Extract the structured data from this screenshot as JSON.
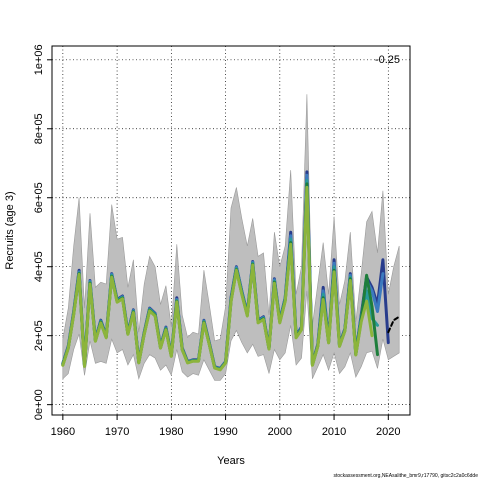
{
  "chart_data": {
    "type": "line",
    "title": "",
    "xlabel": "Years",
    "ylabel": "Recruits (age 3)",
    "xlim": [
      1958,
      2024
    ],
    "ylim": [
      -30000,
      1040000
    ],
    "x_ticks": [
      1960,
      1970,
      1980,
      1990,
      2000,
      2010,
      2020
    ],
    "y_ticks": [
      {
        "value": 0,
        "label": "0e+00"
      },
      {
        "value": 200000,
        "label": "2e+05"
      },
      {
        "value": 400000,
        "label": "4e+05"
      },
      {
        "value": 600000,
        "label": "6e+05"
      },
      {
        "value": 800000,
        "label": "8e+05"
      },
      {
        "value": 1000000,
        "label": "1e+06"
      }
    ],
    "grid": true,
    "corner_label": "-0.25",
    "footer": "stockassessment.org,NEAsalithe_bmr9,r17790, gitsc2c2a0c6dde",
    "band": {
      "x": [
        1960,
        1961,
        1962,
        1963,
        1964,
        1965,
        1966,
        1967,
        1968,
        1969,
        1970,
        1971,
        1972,
        1973,
        1974,
        1975,
        1976,
        1977,
        1978,
        1979,
        1980,
        1981,
        1982,
        1983,
        1984,
        1985,
        1986,
        1987,
        1988,
        1989,
        1990,
        1991,
        1992,
        1993,
        1994,
        1995,
        1996,
        1997,
        1998,
        1999,
        2000,
        2001,
        2002,
        2003,
        2004,
        2005,
        2006,
        2007,
        2008,
        2009,
        2010,
        2011,
        2012,
        2013,
        2014,
        2015,
        2016,
        2017,
        2018,
        2019,
        2020,
        2021,
        2022
      ],
      "upper": [
        190000,
        280000,
        460000,
        600000,
        280000,
        555000,
        340000,
        355000,
        350000,
        580000,
        480000,
        485000,
        340000,
        420000,
        210000,
        350000,
        430000,
        400000,
        290000,
        345000,
        225000,
        465000,
        260000,
        195000,
        210000,
        205000,
        390000,
        290000,
        185000,
        190000,
        285000,
        570000,
        630000,
        540000,
        460000,
        540000,
        430000,
        440000,
        260000,
        500000,
        400000,
        460000,
        680000,
        320000,
        400000,
        900000,
        230000,
        350000,
        470000,
        320000,
        545000,
        290000,
        360000,
        500000,
        240000,
        380000,
        530000,
        560000,
        440000,
        620000,
        320000,
        400000,
        460000
      ],
      "lower": [
        75000,
        90000,
        160000,
        205000,
        85000,
        185000,
        120000,
        125000,
        120000,
        190000,
        150000,
        160000,
        115000,
        145000,
        75000,
        120000,
        145000,
        135000,
        100000,
        115000,
        85000,
        160000,
        95000,
        80000,
        90000,
        85000,
        130000,
        100000,
        70000,
        70000,
        90000,
        185000,
        215000,
        180000,
        150000,
        175000,
        140000,
        145000,
        90000,
        160000,
        130000,
        150000,
        230000,
        115000,
        135000,
        330000,
        75000,
        110000,
        145000,
        100000,
        150000,
        90000,
        110000,
        150000,
        80000,
        110000,
        150000,
        155000,
        105000,
        190000,
        130000,
        140000,
        150000
      ]
    },
    "series": [
      {
        "color": "#283c8c",
        "x": [
          1960,
          1961,
          1962,
          1963,
          1964,
          1965,
          1966,
          1967,
          1968,
          1969,
          1970,
          1971,
          1972,
          1973,
          1974,
          1975,
          1976,
          1977,
          1978,
          1979,
          1980,
          1981,
          1982,
          1983,
          1984,
          1985,
          1986,
          1987,
          1988,
          1989,
          1990,
          1991,
          1992,
          1993,
          1994,
          1995,
          1996,
          1997,
          1998,
          1999,
          2000,
          2001,
          2002,
          2003,
          2004,
          2005,
          2006,
          2007,
          2008,
          2009,
          2010,
          2011,
          2012,
          2013,
          2014,
          2015,
          2016,
          2017,
          2018,
          2019,
          2020
        ],
        "y": [
          120000,
          170000,
          270000,
          390000,
          115000,
          360000,
          190000,
          245000,
          200000,
          380000,
          305000,
          315000,
          210000,
          275000,
          125000,
          210000,
          280000,
          265000,
          170000,
          225000,
          145000,
          310000,
          165000,
          125000,
          130000,
          130000,
          245000,
          180000,
          110000,
          105000,
          125000,
          310000,
          400000,
          330000,
          265000,
          415000,
          245000,
          255000,
          165000,
          365000,
          245000,
          310000,
          500000,
          200000,
          225000,
          675000,
          120000,
          175000,
          340000,
          185000,
          420000,
          175000,
          220000,
          380000,
          150000,
          260000,
          370000,
          340000,
          290000,
          420000,
          180000
        ]
      },
      {
        "color": "#3c7abf",
        "x": [
          1960,
          1961,
          1962,
          1963,
          1964,
          1965,
          1966,
          1967,
          1968,
          1969,
          1970,
          1971,
          1972,
          1973,
          1974,
          1975,
          1976,
          1977,
          1978,
          1979,
          1980,
          1981,
          1982,
          1983,
          1984,
          1985,
          1986,
          1987,
          1988,
          1989,
          1990,
          1991,
          1992,
          1993,
          1994,
          1995,
          1996,
          1997,
          1998,
          1999,
          2000,
          2001,
          2002,
          2003,
          2004,
          2005,
          2006,
          2007,
          2008,
          2009,
          2010,
          2011,
          2012,
          2013,
          2014,
          2015,
          2016,
          2017,
          2018,
          2019
        ],
        "y": [
          118000,
          168000,
          268000,
          385000,
          114000,
          358000,
          188000,
          243000,
          198000,
          378000,
          303000,
          313000,
          208000,
          273000,
          124000,
          208000,
          278000,
          263000,
          168000,
          223000,
          143000,
          305000,
          163000,
          124000,
          129000,
          129000,
          243000,
          178000,
          109000,
          104000,
          124000,
          305000,
          398000,
          328000,
          263000,
          413000,
          243000,
          253000,
          164000,
          362000,
          243000,
          308000,
          490000,
          198000,
          223000,
          665000,
          118000,
          173000,
          330000,
          183000,
          410000,
          173000,
          218000,
          375000,
          148000,
          255000,
          360000,
          330000,
          270000,
          380000
        ]
      },
      {
        "color": "#2a9a9a",
        "x": [
          1960,
          1961,
          1962,
          1963,
          1964,
          1965,
          1966,
          1967,
          1968,
          1969,
          1970,
          1971,
          1972,
          1973,
          1974,
          1975,
          1976,
          1977,
          1978,
          1979,
          1980,
          1981,
          1982,
          1983,
          1984,
          1985,
          1986,
          1987,
          1988,
          1989,
          1990,
          1991,
          1992,
          1993,
          1994,
          1995,
          1996,
          1997,
          1998,
          1999,
          2000,
          2001,
          2002,
          2003,
          2004,
          2005,
          2006,
          2007,
          2008,
          2009,
          2010,
          2011,
          2012,
          2013,
          2014,
          2015,
          2016,
          2017,
          2018
        ],
        "y": [
          117000,
          166000,
          265000,
          382000,
          113000,
          355000,
          186000,
          241000,
          196000,
          375000,
          301000,
          311000,
          206000,
          271000,
          123000,
          206000,
          276000,
          261000,
          166000,
          221000,
          142000,
          302000,
          161000,
          123000,
          128000,
          128000,
          241000,
          176000,
          108000,
          103000,
          123000,
          302000,
          395000,
          325000,
          261000,
          410000,
          241000,
          251000,
          163000,
          358000,
          241000,
          305000,
          480000,
          196000,
          221000,
          650000,
          116000,
          171000,
          320000,
          181000,
          400000,
          171000,
          216000,
          370000,
          146000,
          250000,
          330000,
          250000,
          230000
        ]
      },
      {
        "color": "#1e7e3c",
        "x": [
          1960,
          1961,
          1962,
          1963,
          1964,
          1965,
          1966,
          1967,
          1968,
          1969,
          1970,
          1971,
          1972,
          1973,
          1974,
          1975,
          1976,
          1977,
          1978,
          1979,
          1980,
          1981,
          1982,
          1983,
          1984,
          1985,
          1986,
          1987,
          1988,
          1989,
          1990,
          1991,
          1992,
          1993,
          1994,
          1995,
          1996,
          1997,
          1998,
          1999,
          2000,
          2001,
          2002,
          2003,
          2004,
          2005,
          2006,
          2007,
          2008,
          2009,
          2010,
          2011,
          2012,
          2013,
          2014,
          2015,
          2016,
          2017,
          2018
        ],
        "y": [
          115000,
          165000,
          263000,
          380000,
          112000,
          352000,
          185000,
          239000,
          195000,
          372000,
          299000,
          309000,
          205000,
          269000,
          122000,
          205000,
          274000,
          259000,
          165000,
          219000,
          141000,
          300000,
          160000,
          122000,
          127000,
          127000,
          239000,
          175000,
          107000,
          102000,
          122000,
          300000,
          392000,
          322000,
          259000,
          407000,
          239000,
          249000,
          162000,
          355000,
          239000,
          302000,
          470000,
          195000,
          219000,
          640000,
          115000,
          170000,
          310000,
          180000,
          390000,
          170000,
          215000,
          365000,
          145000,
          245000,
          375000,
          285000,
          145000
        ]
      },
      {
        "color": "#8cb43c",
        "x": [
          1960,
          1961,
          1962,
          1963,
          1964,
          1965,
          1966,
          1967,
          1968,
          1969,
          1970,
          1971,
          1972,
          1973,
          1974,
          1975,
          1976,
          1977,
          1978,
          1979,
          1980,
          1981,
          1982,
          1983,
          1984,
          1985,
          1986,
          1987,
          1988,
          1989,
          1990,
          1991,
          1992,
          1993,
          1994,
          1995,
          1996,
          1997,
          1998,
          1999,
          2000,
          2001,
          2002,
          2003,
          2004,
          2005,
          2006,
          2007,
          2008,
          2009,
          2010,
          2011,
          2012,
          2013,
          2014,
          2015,
          2016,
          2017
        ],
        "y": [
          114000,
          164000,
          261000,
          378000,
          111000,
          350000,
          184000,
          237000,
          194000,
          370000,
          297000,
          307000,
          204000,
          267000,
          121000,
          204000,
          272000,
          257000,
          164000,
          217000,
          140000,
          298000,
          159000,
          121000,
          126000,
          126000,
          237000,
          174000,
          106000,
          101000,
          121000,
          298000,
          390000,
          320000,
          257000,
          405000,
          237000,
          247000,
          161000,
          352000,
          237000,
          300000,
          465000,
          194000,
          217000,
          630000,
          114000,
          169000,
          305000,
          179000,
          385000,
          169000,
          214000,
          360000,
          144000,
          240000,
          300000,
          200000
        ]
      },
      {
        "color": "#000000",
        "dashed": true,
        "x": [
          2020,
          2021,
          2022
        ],
        "y": [
          210000,
          245000,
          255000
        ]
      }
    ]
  }
}
